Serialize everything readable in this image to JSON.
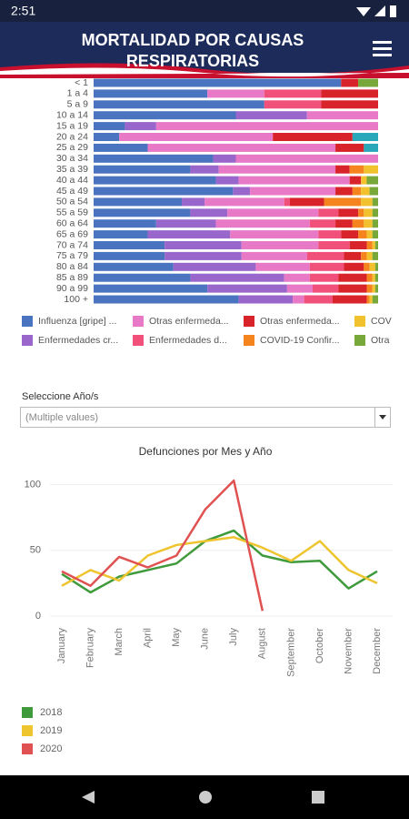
{
  "status_bar": {
    "time": "2:51"
  },
  "header": {
    "title_lines": [
      "MORTALIDAD POR CAUSAS",
      "RESPIRATORIAS"
    ]
  },
  "filter": {
    "label": "Seleccione Año/s",
    "value": "(Multiple values)"
  },
  "chart_data": [
    {
      "type": "bar",
      "orientation": "horizontal",
      "stacked": true,
      "categories": [
        "< 1",
        "1 a 4",
        "5 a 9",
        "10 a 14",
        "15 a 19",
        "20 a 24",
        "25 a 29",
        "30 a 34",
        "35 a 39",
        "40 a 44",
        "45 a 49",
        "50 a 54",
        "55 a 59",
        "60 a 64",
        "65 a 69",
        "70 a 74",
        "75 a 79",
        "80 a 84",
        "85 a 89",
        "90 a 99",
        "100 +"
      ],
      "series": [
        {
          "name": "Influenza [gripe] ...",
          "color": "#4a74bf",
          "values": [
            87,
            40,
            60,
            50,
            11,
            9,
            19,
            42,
            34,
            43,
            49,
            31,
            34,
            22,
            19,
            25,
            25,
            28,
            34,
            40,
            51
          ]
        },
        {
          "name": "Enfermedades cr...",
          "color": "#9966cc",
          "values": [
            0,
            0,
            0,
            25,
            11,
            0,
            0,
            8,
            10,
            8,
            6,
            8,
            13,
            21,
            29,
            27,
            27,
            29,
            33,
            28,
            19
          ]
        },
        {
          "name": "Otras enfermeda...",
          "color": "#e879c6",
          "values": [
            0,
            20,
            0,
            25,
            78,
            54,
            66,
            50,
            41,
            39,
            30,
            28,
            32,
            33,
            31,
            27,
            23,
            19,
            9,
            9,
            4
          ]
        },
        {
          "name": "Enfermedades d...",
          "color": "#f0507a",
          "values": [
            0,
            20,
            20,
            0,
            0,
            0,
            0,
            0,
            0,
            0,
            0,
            2,
            7,
            9,
            8,
            11,
            13,
            12,
            10,
            9,
            10
          ]
        },
        {
          "name": "Otras enfermeda...",
          "color": "#d8232a",
          "values": [
            6,
            20,
            20,
            0,
            0,
            28,
            10,
            0,
            5,
            4,
            6,
            12,
            7,
            6,
            6,
            6,
            6,
            7,
            10,
            10,
            12
          ]
        },
        {
          "name": "COVID-19 Confir...",
          "color": "#f5841f",
          "values": [
            0,
            0,
            0,
            0,
            0,
            0,
            0,
            0,
            5,
            0,
            3,
            13,
            2,
            4,
            3,
            2,
            2,
            2,
            2,
            2,
            1
          ]
        },
        {
          "name": "COV",
          "color": "#f2c12e",
          "values": [
            0,
            0,
            0,
            0,
            0,
            0,
            0,
            0,
            5,
            2,
            3,
            4,
            3,
            3,
            2,
            1,
            2,
            2,
            1,
            1,
            1
          ]
        },
        {
          "name": "Otra",
          "color": "#78a83a",
          "values": [
            7,
            0,
            0,
            0,
            0,
            0,
            0,
            0,
            0,
            4,
            3,
            2,
            2,
            2,
            2,
            1,
            2,
            1,
            1,
            1,
            2
          ]
        },
        {
          "name": null,
          "color": "#2aa7b8",
          "values": [
            0,
            0,
            0,
            0,
            0,
            9,
            5,
            0,
            0,
            0,
            0,
            0,
            0,
            0,
            0,
            0,
            0,
            0,
            0,
            0,
            0
          ]
        }
      ]
    },
    {
      "type": "line",
      "title": "Defunciones por Mes y Año",
      "categories": [
        "January",
        "February",
        "March",
        "April",
        "May",
        "June",
        "July",
        "August",
        "September",
        "October",
        "November",
        "December"
      ],
      "ylim": [
        0,
        110
      ],
      "yticks": [
        0,
        50,
        100
      ],
      "grid": true,
      "series": [
        {
          "name": "2018",
          "color": "#3f9a3c",
          "values": [
            32,
            18,
            30,
            35,
            40,
            57,
            65,
            46,
            41,
            42,
            21,
            34
          ]
        },
        {
          "name": "2019",
          "color": "#eec42f",
          "values": [
            23,
            35,
            27,
            46,
            54,
            57,
            60,
            52,
            42,
            57,
            35,
            25
          ]
        },
        {
          "name": "2020",
          "color": "#e05252",
          "values": [
            34,
            23,
            45,
            37,
            46,
            81,
            103,
            4,
            null,
            null,
            null,
            null
          ]
        }
      ]
    }
  ]
}
